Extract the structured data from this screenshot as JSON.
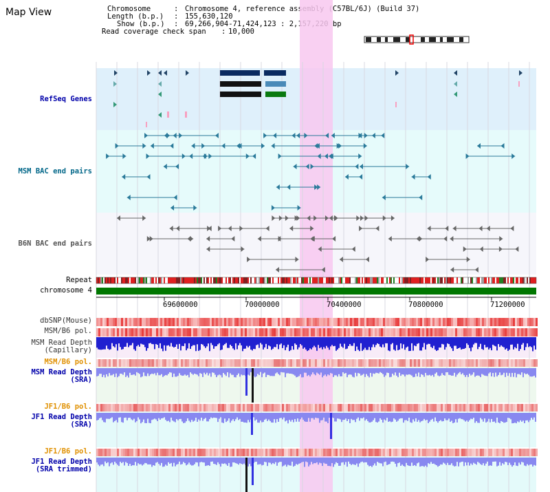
{
  "map_title": "Map View",
  "info": {
    "chromosome_key": "Chromosome",
    "chromosome_val": "Chromosome 4, reference assembly (C57BL/6J) (Build 37)",
    "length_key": "Length (b.p.)",
    "length_val": "155,630,120",
    "show_key": "Show (b.p.)",
    "show_val": "69,266,904-71,424,123 : 2,157,220 bp",
    "coverage_key": "Read coverage check span",
    "coverage_val": "10,000"
  },
  "tracks": {
    "refseq": "RefSeq Genes",
    "msm_bac": "MSM BAC end pairs",
    "b6n_bac": "B6N BAC end pairs",
    "repeat": "Repeat",
    "chromosome": "chromosome 4",
    "dbsnp": "dbSNP(Mouse)",
    "msm_b6_pol_1": "MSM/B6 pol.",
    "msm_depth_cap_1": "MSM Read Depth",
    "msm_depth_cap_2": "(Capillary)",
    "msm_b6_pol_2": "MSM/B6 pol.",
    "msm_depth_sra_1": "MSM Read Depth",
    "msm_depth_sra_2": "(SRA)",
    "jf1_pol_1": "JF1/B6 pol.",
    "jf1_depth_sra_1": "JF1 Read Depth",
    "jf1_depth_sra_2": "(SRA)",
    "jf1_pol_2": "JF1/B6 pol.",
    "jf1_depth_trim_1": "JF1 Read Depth",
    "jf1_depth_trim_2": "(SRA trimmed)"
  },
  "axis_ticks": [
    "69600000",
    "70000000",
    "70400000",
    "70800000",
    "71200000"
  ],
  "colors": {
    "refseq_label": "#0000aa",
    "msm_label": "#006688",
    "b6n_label": "#555555",
    "pol_label": "#e09000",
    "depth_label": "#0000aa",
    "highlight": "#f8c8f0",
    "chromosome": "#007700"
  }
}
